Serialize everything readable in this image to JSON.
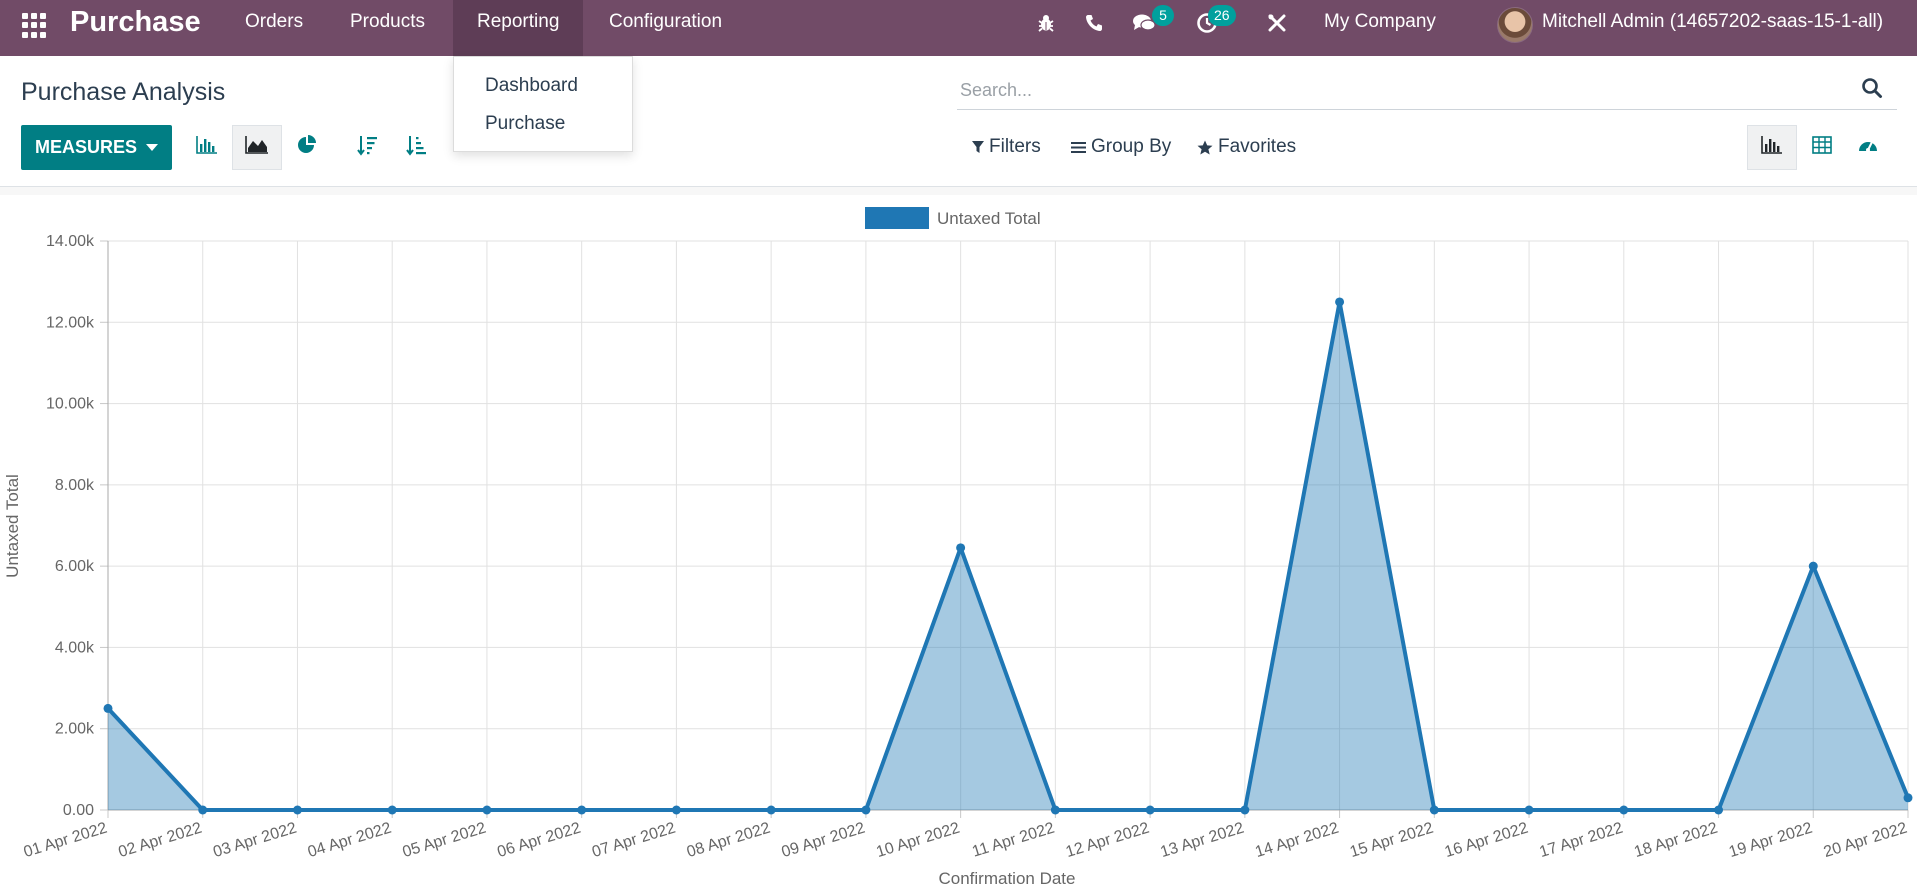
{
  "navbar": {
    "app_name": "Purchase",
    "menu": [
      {
        "label": "Orders"
      },
      {
        "label": "Products"
      },
      {
        "label": "Reporting"
      },
      {
        "label": "Configuration"
      }
    ],
    "icons": [
      "apps-grid-icon",
      "bug-icon",
      "phone-icon",
      "chat-icon",
      "activity-clock-icon",
      "tools-icon"
    ],
    "chat_badge": "5",
    "activity_badge": "26",
    "company": "My Company",
    "user": "Mitchell Admin (14657202-saas-15-1-all)",
    "background_color": "#714b67"
  },
  "reporting_dropdown": {
    "items": [
      {
        "label": "Dashboard"
      },
      {
        "label": "Purchase"
      }
    ]
  },
  "control_panel": {
    "title": "Purchase Analysis",
    "search_placeholder": "Search...",
    "measures_label": "MEASURES",
    "chart_type_buttons": [
      "bar-chart-icon",
      "line-chart-icon",
      "pie-chart-icon"
    ],
    "active_chart_type": "line-chart-icon",
    "sort_buttons": [
      "sort-descending-icon",
      "sort-ascending-icon"
    ],
    "filters_label": "Filters",
    "groupby_label": "Group By",
    "favorites_label": "Favorites",
    "view_buttons": [
      "graph-view-icon",
      "pivot-view-icon",
      "dashboard-view-icon"
    ],
    "active_view": "graph-view-icon",
    "accent_color": "#017e84"
  },
  "chart_data": {
    "type": "area",
    "categories": [
      "01 Apr 2022",
      "02 Apr 2022",
      "03 Apr 2022",
      "04 Apr 2022",
      "05 Apr 2022",
      "06 Apr 2022",
      "07 Apr 2022",
      "08 Apr 2022",
      "09 Apr 2022",
      "10 Apr 2022",
      "11 Apr 2022",
      "12 Apr 2022",
      "13 Apr 2022",
      "14 Apr 2022",
      "15 Apr 2022",
      "16 Apr 2022",
      "17 Apr 2022",
      "18 Apr 2022",
      "19 Apr 2022",
      "20 Apr 2022"
    ],
    "series": [
      {
        "name": "Untaxed Total",
        "color": "#1f77b4",
        "values": [
          2500,
          0,
          0,
          0,
          0,
          0,
          0,
          0,
          0,
          6450,
          0,
          0,
          0,
          12500,
          0,
          0,
          0,
          0,
          6000,
          300
        ]
      }
    ],
    "ylim": [
      0,
      14000
    ],
    "y_ticks": [
      "0.00",
      "2.00k",
      "4.00k",
      "6.00k",
      "8.00k",
      "10.00k",
      "12.00k",
      "14.00k"
    ],
    "y_tick_values": [
      0,
      2000,
      4000,
      6000,
      8000,
      10000,
      12000,
      14000
    ],
    "xlabel": "Confirmation Date",
    "ylabel": "Untaxed Total",
    "grid": true,
    "legend": "top-center"
  }
}
